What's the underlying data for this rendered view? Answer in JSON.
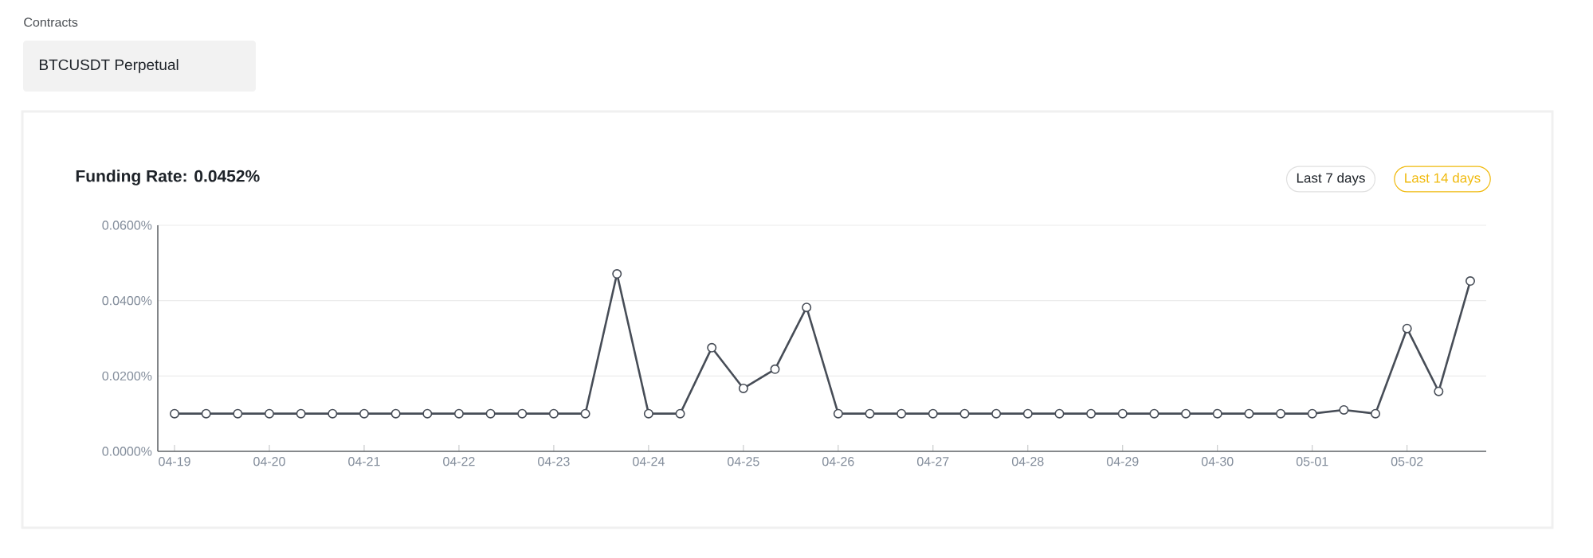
{
  "chart_data": {
    "type": "line",
    "title": "Funding Rate: 0.0452%",
    "annotations": [
      "Contracts",
      "BTCUSDT Perpetual",
      "Last 7 days",
      "Last 14 days"
    ],
    "categories": [
      "04-19",
      null,
      null,
      "04-20",
      null,
      null,
      "04-21",
      null,
      null,
      "04-22",
      null,
      null,
      "04-23",
      null,
      null,
      "04-24",
      null,
      null,
      "04-25",
      null,
      null,
      "04-26",
      null,
      null,
      "04-27",
      null,
      null,
      "04-28",
      null,
      null,
      "04-29",
      null,
      null,
      "04-30",
      null,
      null,
      "05-01",
      null,
      null,
      "05-02",
      null,
      null
    ],
    "series": [
      {
        "color": "#474d57",
        "values": [
          0.01,
          0.01,
          0.01,
          0.01,
          0.01,
          0.01,
          0.01,
          0.01,
          0.01,
          0.01,
          0.01,
          0.01,
          0.01,
          0.01,
          0.0471,
          0.01,
          0.01,
          0.0275,
          0.0167,
          0.0218,
          0.0382,
          0.01,
          0.01,
          0.01,
          0.01,
          0.01,
          0.01,
          0.01,
          0.01,
          0.01,
          0.01,
          0.01,
          0.01,
          0.01,
          0.01,
          0.01,
          0.01,
          0.011,
          0.01,
          0.0326,
          0.0159,
          0.0452
        ]
      }
    ],
    "ylim": [
      0,
      0.06
    ],
    "yticks": [
      {
        "value": 0,
        "label": "0.0000%"
      },
      {
        "value": 0.02,
        "label": "0.0200%"
      },
      {
        "value": 0.04,
        "label": "0.0400%"
      },
      {
        "value": 0.06,
        "label": "0.0600%"
      }
    ],
    "grid": "y",
    "marker": "circle",
    "line_style": "solid"
  }
}
